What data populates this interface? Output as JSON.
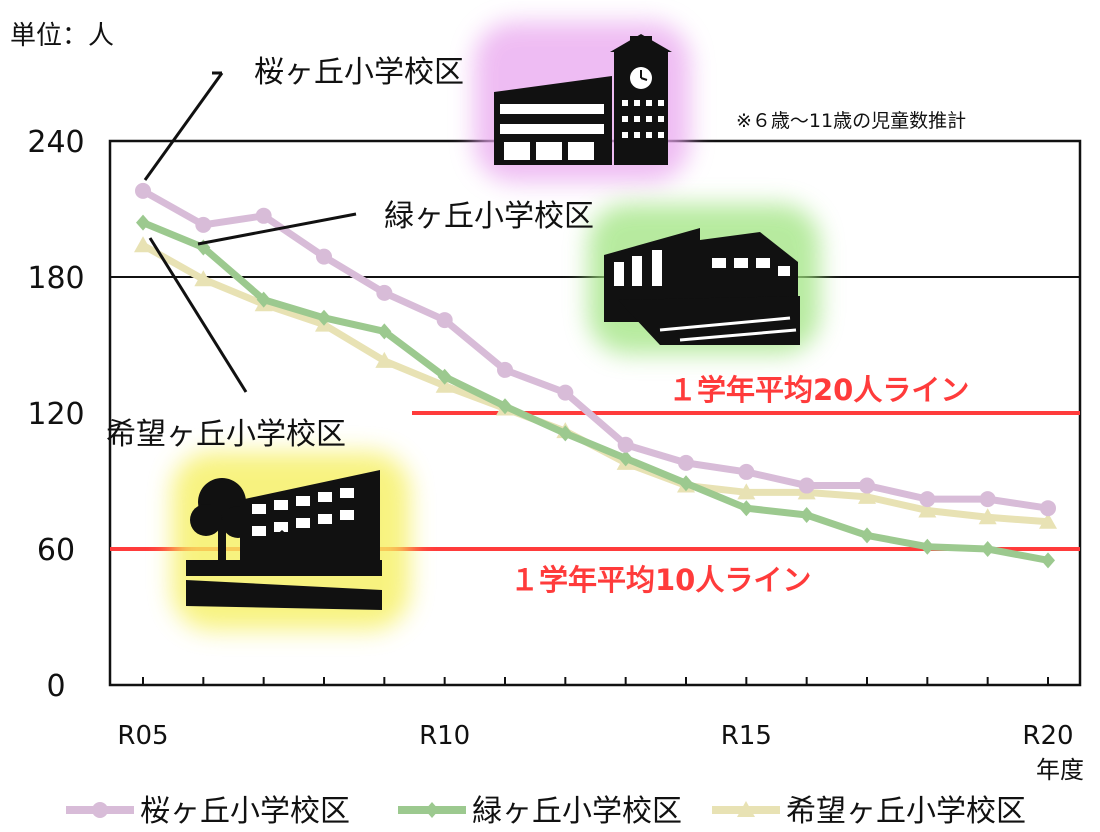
{
  "chart_data": {
    "type": "line",
    "unit_label": "単位：人",
    "note": "※６歳～11歳の児童数推計",
    "xlabel": "年度",
    "x": [
      "R05",
      "R06",
      "R07",
      "R08",
      "R09",
      "R10",
      "R11",
      "R12",
      "R13",
      "R14",
      "R15",
      "R16",
      "R17",
      "R18",
      "R19",
      "R20"
    ],
    "xtick_labels": [
      "R05",
      "R10",
      "R15",
      "R20"
    ],
    "ylim": [
      0,
      240
    ],
    "yticks": [
      0,
      60,
      120,
      180,
      240
    ],
    "grid": "horizontal lines at 180 and 240",
    "legend_position": "bottom",
    "series": [
      {
        "name": "桜ヶ丘小学校区",
        "marker": "circle",
        "color": "#d8bcd8",
        "values": [
          218,
          203,
          207,
          189,
          173,
          161,
          139,
          129,
          106,
          98,
          94,
          88,
          88,
          82,
          82,
          78
        ]
      },
      {
        "name": "緑ヶ丘小学校区",
        "marker": "diamond",
        "color": "#9cc98f",
        "values": [
          204,
          193,
          170,
          162,
          156,
          136,
          123,
          111,
          100,
          89,
          78,
          75,
          66,
          61,
          60,
          55
        ]
      },
      {
        "name": "希望ヶ丘小学校区",
        "marker": "triangle",
        "color": "#e8e2b4",
        "values": [
          194,
          179,
          168,
          159,
          143,
          132,
          122,
          112,
          98,
          88,
          85,
          85,
          83,
          77,
          74,
          72
        ]
      }
    ],
    "reference_lines": [
      {
        "label": "１学年平均20人ライン",
        "value": 120,
        "color": "#ff3b3b"
      },
      {
        "label": "１学年平均10人ライン",
        "value": 60,
        "color": "#ff3b3b"
      }
    ],
    "annotations": [
      {
        "label": "桜ヶ丘小学校区",
        "points_to": "R05"
      },
      {
        "label": "緑ヶ丘小学校区",
        "points_to": "R06"
      },
      {
        "label": "希望ヶ丘小学校区",
        "points_to": "R05"
      }
    ],
    "school_icons": [
      {
        "name": "school-building-icon",
        "halo": "#e9a6ef"
      },
      {
        "name": "school-building-icon",
        "halo": "#9fe47f"
      },
      {
        "name": "school-building-icon",
        "halo": "#f6f061"
      }
    ]
  }
}
